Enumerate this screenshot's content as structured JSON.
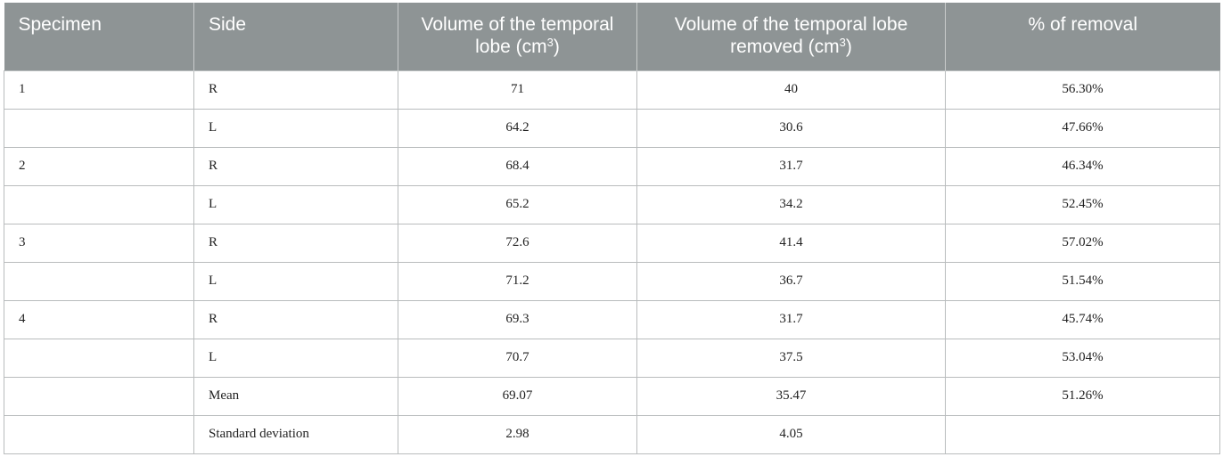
{
  "table": {
    "headers": {
      "specimen": "Specimen",
      "side": "Side",
      "volume_main": "Volume of the temporal lobe (cm",
      "volume_sup": "3",
      "volume_close": ")",
      "removed_main": "Volume of the temporal lobe removed (cm",
      "removed_sup": "3",
      "removed_close": ")",
      "removal": "% of removal"
    },
    "rows": [
      {
        "specimen": "1",
        "side": "R",
        "volume": "71",
        "removed": "40",
        "pct": "56.30%"
      },
      {
        "specimen": "",
        "side": "L",
        "volume": "64.2",
        "removed": "30.6",
        "pct": "47.66%"
      },
      {
        "specimen": "2",
        "side": "R",
        "volume": "68.4",
        "removed": "31.7",
        "pct": "46.34%"
      },
      {
        "specimen": "",
        "side": "L",
        "volume": "65.2",
        "removed": "34.2",
        "pct": "52.45%"
      },
      {
        "specimen": "3",
        "side": "R",
        "volume": "72.6",
        "removed": "41.4",
        "pct": "57.02%"
      },
      {
        "specimen": "",
        "side": "L",
        "volume": "71.2",
        "removed": "36.7",
        "pct": "51.54%"
      },
      {
        "specimen": "4",
        "side": "R",
        "volume": "69.3",
        "removed": "31.7",
        "pct": "45.74%"
      },
      {
        "specimen": "",
        "side": "L",
        "volume": "70.7",
        "removed": "37.5",
        "pct": "53.04%"
      },
      {
        "specimen": "",
        "side": "Mean",
        "volume": "69.07",
        "removed": "35.47",
        "pct": "51.26%"
      },
      {
        "specimen": "",
        "side": "Standard deviation",
        "volume": "2.98",
        "removed": "4.05",
        "pct": ""
      }
    ]
  }
}
